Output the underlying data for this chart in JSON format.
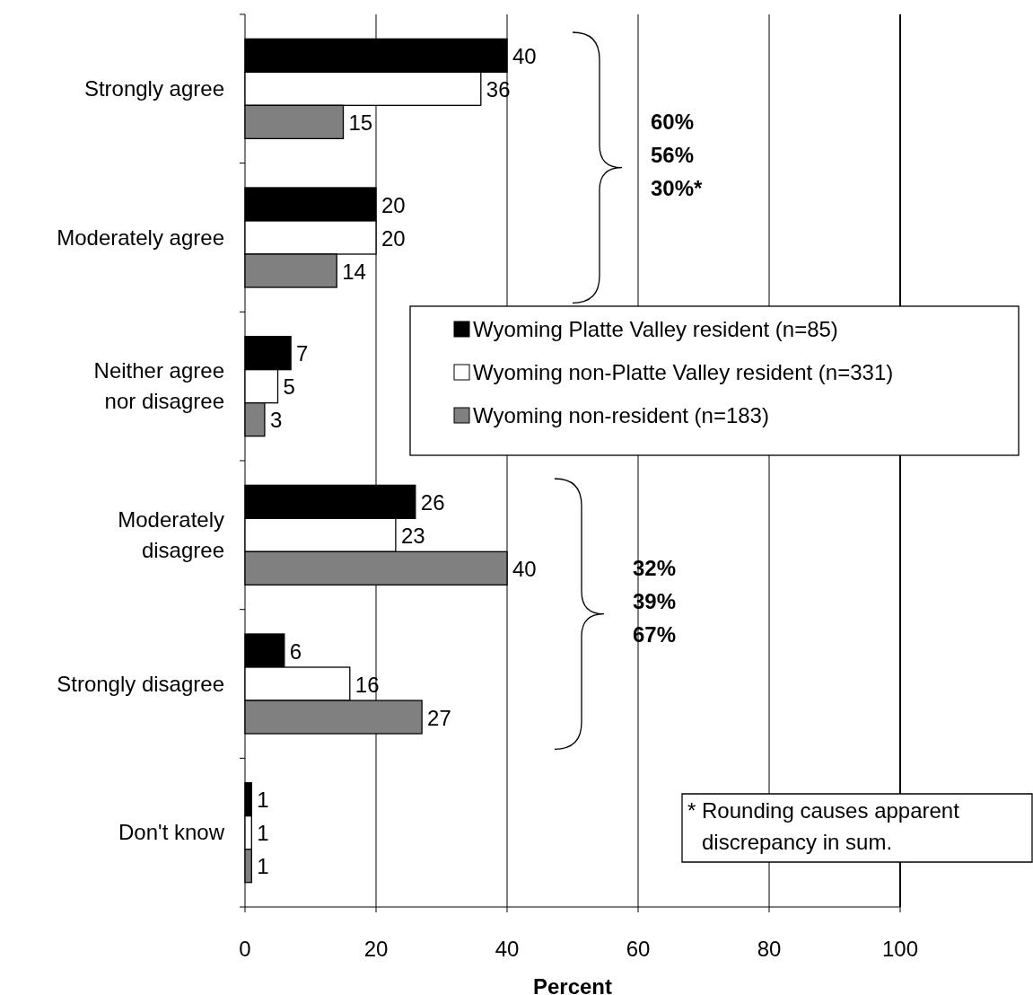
{
  "chart_data": {
    "type": "bar",
    "orientation": "horizontal",
    "xlabel": "Percent",
    "categories": [
      "Strongly agree",
      "Moderately agree",
      "Neither agree nor disagree",
      "Moderately disagree",
      "Strongly disagree",
      "Don't know"
    ],
    "series": [
      {
        "name": "Wyoming Platte Valley resident (n=85)",
        "color": "#000000",
        "values": [
          40,
          20,
          7,
          26,
          6,
          1
        ]
      },
      {
        "name": "Wyoming non-Platte Valley resident (n=331)",
        "color": "#ffffff",
        "values": [
          36,
          20,
          5,
          23,
          16,
          1
        ]
      },
      {
        "name": "Wyoming non-resident (n=183)",
        "color": "#808080",
        "values": [
          15,
          14,
          3,
          40,
          27,
          1
        ]
      }
    ],
    "xlim": [
      0,
      100
    ],
    "xticks": [
      0,
      20,
      40,
      60,
      80,
      100
    ],
    "grid": "x",
    "legend": "right",
    "data_labels": true,
    "annotations": [
      "60%",
      "56%",
      "30%*",
      "32%",
      "39%",
      "67%",
      "* Rounding causes apparent discrepancy in sum."
    ]
  }
}
